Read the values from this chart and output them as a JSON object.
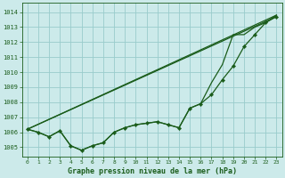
{
  "title": "Graphe pression niveau de la mer (hPa)",
  "bg_color": "#cceaea",
  "grid_color": "#99cccc",
  "line_color": "#1a5c1a",
  "xlim": [
    -0.5,
    23.5
  ],
  "ylim": [
    1004.4,
    1014.6
  ],
  "yticks": [
    1005,
    1006,
    1007,
    1008,
    1009,
    1010,
    1011,
    1012,
    1013,
    1014
  ],
  "xticks": [
    0,
    1,
    2,
    3,
    4,
    5,
    6,
    7,
    8,
    9,
    10,
    11,
    12,
    13,
    14,
    15,
    16,
    17,
    18,
    19,
    20,
    21,
    22,
    23
  ],
  "line1_straight": [
    [
      0,
      1006.2
    ],
    [
      23,
      1013.7
    ]
  ],
  "line2_straight": [
    [
      0,
      1006.2
    ],
    [
      23,
      1013.8
    ]
  ],
  "series_main": [
    1006.2,
    1006.0,
    1005.7,
    1006.1,
    1005.1,
    1004.8,
    1005.1,
    1005.3,
    1006.0,
    1006.3,
    1006.5,
    1006.6,
    1006.7,
    1006.5,
    1006.3,
    1007.6,
    1007.9,
    1008.5,
    1009.5,
    1010.4,
    1011.7,
    1012.5,
    1013.3,
    1013.7
  ],
  "series_upper": [
    1006.2,
    1006.0,
    1005.7,
    1006.1,
    1005.1,
    1004.8,
    1005.1,
    1005.3,
    1006.0,
    1006.3,
    1006.5,
    1006.6,
    1006.7,
    1006.5,
    1006.3,
    1007.6,
    1007.9,
    1009.3,
    1010.5,
    1012.5,
    1012.5,
    1013.0,
    1013.3,
    1013.8
  ]
}
